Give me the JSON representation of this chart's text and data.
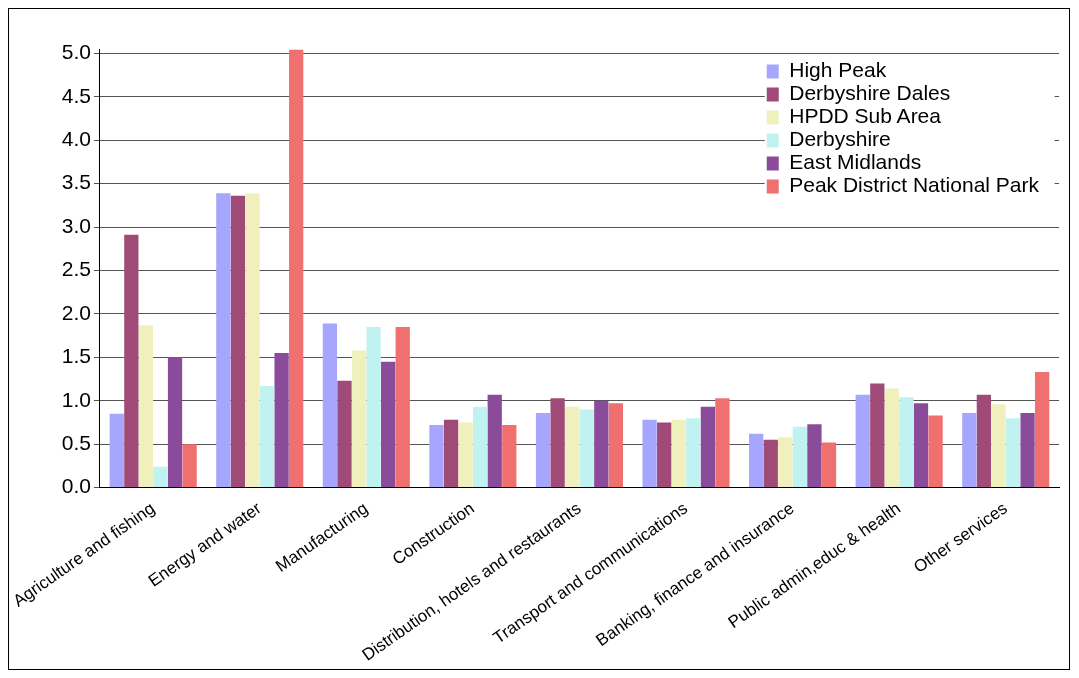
{
  "chart_data": {
    "type": "bar",
    "categories": [
      "Agriculture and fishing",
      "Energy and water",
      "Manufacturing",
      "Construction",
      "Distribution, hotels and restaurants",
      "Transport and communications",
      "Banking, finance and insurance",
      "Public admin,educ & health",
      "Other services"
    ],
    "series": [
      {
        "name": "High Peak",
        "color": "#a6a6ff",
        "values": [
          0.85,
          3.39,
          1.89,
          0.72,
          0.86,
          0.78,
          0.62,
          1.07,
          0.86
        ]
      },
      {
        "name": "Derbyshire Dales",
        "color": "#a04a78",
        "values": [
          2.91,
          3.36,
          1.23,
          0.78,
          1.03,
          0.75,
          0.55,
          1.2,
          1.07
        ]
      },
      {
        "name": "HPDD Sub Area",
        "color": "#f0f0bc",
        "values": [
          1.87,
          3.39,
          1.58,
          0.75,
          0.93,
          0.78,
          0.58,
          1.14,
          0.96
        ]
      },
      {
        "name": "Derbyshire",
        "color": "#c0f2f2",
        "values": [
          0.24,
          1.17,
          1.85,
          0.93,
          0.9,
          0.8,
          0.7,
          1.04,
          0.8
        ]
      },
      {
        "name": "East Midlands",
        "color": "#8a4c9a",
        "values": [
          1.5,
          1.55,
          1.45,
          1.07,
          1.0,
          0.93,
          0.73,
          0.97,
          0.86
        ]
      },
      {
        "name": "Peak District National Park",
        "color": "#f07070",
        "values": [
          0.5,
          5.04,
          1.85,
          0.72,
          0.97,
          1.03,
          0.52,
          0.83,
          1.33
        ]
      }
    ],
    "ylim": [
      0,
      5.05
    ],
    "yticks": [
      {
        "value": 0,
        "label": "0.0"
      },
      {
        "value": 0.5,
        "label": "0.5"
      },
      {
        "value": 1,
        "label": "1.0"
      },
      {
        "value": 1.5,
        "label": "1.5"
      },
      {
        "value": 2,
        "label": "2.0"
      },
      {
        "value": 2.5,
        "label": "2.5"
      },
      {
        "value": 3,
        "label": "3.0"
      },
      {
        "value": 3.5,
        "label": "3.5"
      },
      {
        "value": 4,
        "label": "4.0"
      },
      {
        "value": 4.5,
        "label": "4.5"
      },
      {
        "value": 5,
        "label": "5.0"
      }
    ],
    "grid": "y",
    "legend": "top right"
  }
}
